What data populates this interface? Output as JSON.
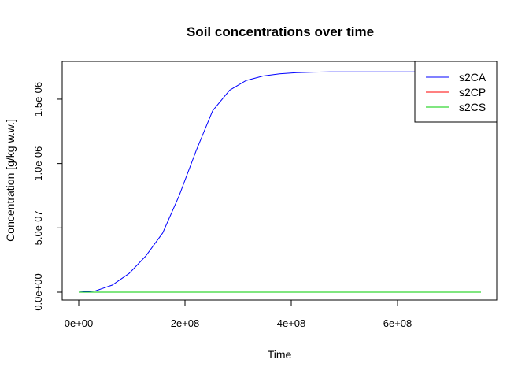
{
  "chart_data": {
    "type": "line",
    "title": "Soil concentrations over time",
    "xlabel": "Time",
    "ylabel": "Concentration [g/kg w.w.]",
    "xlim": [
      0,
      757000000
    ],
    "ylim": [
      0,
      1.72e-06
    ],
    "x_ticks": [
      {
        "value": 0,
        "label": "0e+00"
      },
      {
        "value": 200000000,
        "label": "2e+08"
      },
      {
        "value": 400000000,
        "label": "4e+08"
      },
      {
        "value": 600000000,
        "label": "6e+08"
      }
    ],
    "y_ticks": [
      {
        "value": 0,
        "label": "0.0e+00"
      },
      {
        "value": 5e-07,
        "label": "5.0e-07"
      },
      {
        "value": 1e-06,
        "label": "1.0e-06"
      },
      {
        "value": 1.5e-06,
        "label": "1.5e-06"
      }
    ],
    "grid": false,
    "legend_position": "top-right",
    "x": [
      0,
      31500000,
      63000000,
      94600000,
      126000000,
      158000000,
      189000000,
      221000000,
      252000000,
      284000000,
      315000000,
      347000000,
      378000000,
      410000000,
      442000000,
      473000000,
      505000000,
      536000000,
      568000000,
      600000000,
      631000000,
      663000000,
      694000000,
      726000000,
      757000000
    ],
    "series": [
      {
        "name": "s2CA",
        "color": "#0000ff",
        "values": [
          0,
          1e-08,
          5.5e-08,
          1.45e-07,
          2.8e-07,
          4.6e-07,
          7.5e-07,
          1.1e-06,
          1.41e-06,
          1.57e-06,
          1.645e-06,
          1.68e-06,
          1.697e-06,
          1.706e-06,
          1.71e-06,
          1.712e-06,
          1.712e-06,
          1.712e-06,
          1.712e-06,
          1.712e-06,
          1.712e-06,
          1.712e-06,
          1.712e-06,
          1.712e-06,
          1.712e-06
        ]
      },
      {
        "name": "s2CP",
        "color": "#ff0000",
        "values": [
          0,
          0,
          0,
          0,
          0,
          0,
          0,
          0,
          0,
          0,
          0,
          0,
          0,
          0,
          0,
          0,
          0,
          0,
          0,
          0,
          0,
          0,
          0,
          0,
          0
        ]
      },
      {
        "name": "s2CS",
        "color": "#00cd00",
        "values": [
          0,
          0,
          0,
          0,
          0,
          0,
          0,
          0,
          0,
          0,
          0,
          0,
          0,
          0,
          0,
          0,
          0,
          0,
          0,
          0,
          0,
          0,
          0,
          0,
          0
        ]
      }
    ]
  }
}
